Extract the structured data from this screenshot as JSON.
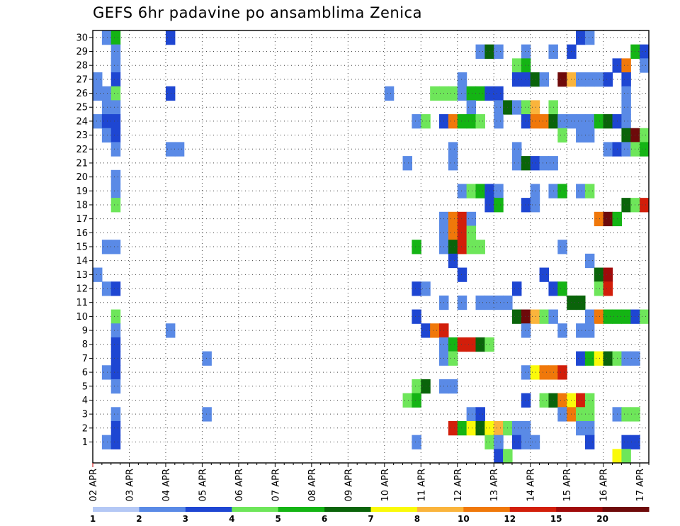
{
  "chart_data": {
    "type": "heatmap",
    "title": "GEFS 6hr padavine po ansamblima Zenica",
    "y_label": "",
    "x_label": "",
    "y_members": [
      1,
      2,
      3,
      4,
      5,
      6,
      7,
      8,
      9,
      10,
      11,
      12,
      13,
      14,
      15,
      16,
      17,
      18,
      19,
      20,
      21,
      22,
      23,
      24,
      25,
      26,
      27,
      28,
      29,
      30
    ],
    "x_tick_labels": [
      "02 APR",
      "03 APR",
      "04 APR",
      "05 APR",
      "06 APR",
      "07 APR",
      "08 APR",
      "09 APR",
      "10 APR",
      "11 APR",
      "12 APR",
      "13 APR",
      "14 APR",
      "15 APR",
      "16 APR",
      "17 APR"
    ],
    "x_step_hours": 6,
    "n_steps": 61,
    "grid": "dotted",
    "legend": {
      "placement": "bottom",
      "labels": [
        "1",
        "2",
        "3",
        "4",
        "5",
        "6",
        "7",
        "8",
        "10",
        "12",
        "15",
        "20"
      ],
      "colors": [
        "#b4c8f5",
        "#5a8ae6",
        "#1e46d2",
        "#6ee65a",
        "#14b414",
        "#0a640a",
        "#fafa0a",
        "#fab43c",
        "#f0780a",
        "#d21e0a",
        "#a00a0a",
        "#6e0a0a"
      ]
    },
    "cells": [
      [
        30,
        1,
        1
      ],
      [
        30,
        2,
        4
      ],
      [
        30,
        8,
        2
      ],
      [
        30,
        53,
        2
      ],
      [
        30,
        54,
        1
      ],
      [
        29,
        2,
        1
      ],
      [
        29,
        42,
        1
      ],
      [
        29,
        43,
        5
      ],
      [
        29,
        44,
        1
      ],
      [
        29,
        47,
        1
      ],
      [
        29,
        50,
        1
      ],
      [
        29,
        52,
        2
      ],
      [
        29,
        59,
        4
      ],
      [
        29,
        60,
        2
      ],
      [
        28,
        2,
        1
      ],
      [
        28,
        46,
        3
      ],
      [
        28,
        47,
        4
      ],
      [
        28,
        57,
        2
      ],
      [
        28,
        58,
        8
      ],
      [
        28,
        60,
        1
      ],
      [
        27,
        0,
        1
      ],
      [
        27,
        2,
        2
      ],
      [
        27,
        40,
        1
      ],
      [
        27,
        46,
        2
      ],
      [
        27,
        47,
        2
      ],
      [
        27,
        48,
        5
      ],
      [
        27,
        49,
        1
      ],
      [
        27,
        51,
        11
      ],
      [
        27,
        52,
        7
      ],
      [
        27,
        53,
        1
      ],
      [
        27,
        54,
        1
      ],
      [
        27,
        55,
        1
      ],
      [
        27,
        56,
        2
      ],
      [
        27,
        58,
        2
      ],
      [
        26,
        0,
        1
      ],
      [
        26,
        1,
        1
      ],
      [
        26,
        2,
        3
      ],
      [
        26,
        8,
        2
      ],
      [
        26,
        32,
        1
      ],
      [
        26,
        37,
        3
      ],
      [
        26,
        38,
        3
      ],
      [
        26,
        39,
        3
      ],
      [
        26,
        40,
        1
      ],
      [
        26,
        41,
        4
      ],
      [
        26,
        42,
        4
      ],
      [
        26,
        43,
        2
      ],
      [
        26,
        44,
        2
      ],
      [
        26,
        58,
        1
      ],
      [
        25,
        1,
        1
      ],
      [
        25,
        2,
        1
      ],
      [
        25,
        41,
        1
      ],
      [
        25,
        44,
        1
      ],
      [
        25,
        45,
        5
      ],
      [
        25,
        46,
        1
      ],
      [
        25,
        47,
        3
      ],
      [
        25,
        48,
        7
      ],
      [
        25,
        50,
        3
      ],
      [
        25,
        58,
        1
      ],
      [
        24,
        0,
        1
      ],
      [
        24,
        1,
        2
      ],
      [
        24,
        2,
        2
      ],
      [
        24,
        35,
        1
      ],
      [
        24,
        36,
        3
      ],
      [
        24,
        38,
        2
      ],
      [
        24,
        39,
        8
      ],
      [
        24,
        40,
        4
      ],
      [
        24,
        41,
        4
      ],
      [
        24,
        42,
        3
      ],
      [
        24,
        44,
        1
      ],
      [
        24,
        47,
        2
      ],
      [
        24,
        48,
        8
      ],
      [
        24,
        49,
        8
      ],
      [
        24,
        50,
        5
      ],
      [
        24,
        51,
        1
      ],
      [
        24,
        52,
        1
      ],
      [
        24,
        53,
        1
      ],
      [
        24,
        54,
        1
      ],
      [
        24,
        55,
        4
      ],
      [
        24,
        56,
        5
      ],
      [
        24,
        57,
        2
      ],
      [
        24,
        58,
        1
      ],
      [
        23,
        1,
        1
      ],
      [
        23,
        2,
        2
      ],
      [
        23,
        51,
        3
      ],
      [
        23,
        53,
        1
      ],
      [
        23,
        54,
        1
      ],
      [
        23,
        58,
        5
      ],
      [
        23,
        59,
        11
      ],
      [
        23,
        60,
        3
      ],
      [
        22,
        2,
        1
      ],
      [
        22,
        8,
        1
      ],
      [
        22,
        9,
        1
      ],
      [
        22,
        39,
        1
      ],
      [
        22,
        46,
        1
      ],
      [
        22,
        56,
        1
      ],
      [
        22,
        57,
        2
      ],
      [
        22,
        58,
        1
      ],
      [
        22,
        59,
        3
      ],
      [
        22,
        60,
        4
      ],
      [
        21,
        34,
        1
      ],
      [
        21,
        39,
        1
      ],
      [
        21,
        46,
        1
      ],
      [
        21,
        47,
        5
      ],
      [
        21,
        48,
        2
      ],
      [
        21,
        49,
        1
      ],
      [
        21,
        50,
        1
      ],
      [
        20,
        2,
        1
      ],
      [
        19,
        2,
        1
      ],
      [
        19,
        40,
        1
      ],
      [
        19,
        41,
        3
      ],
      [
        19,
        42,
        4
      ],
      [
        19,
        43,
        2
      ],
      [
        19,
        44,
        1
      ],
      [
        19,
        48,
        1
      ],
      [
        19,
        50,
        1
      ],
      [
        19,
        51,
        4
      ],
      [
        19,
        53,
        1
      ],
      [
        19,
        54,
        3
      ],
      [
        18,
        2,
        3
      ],
      [
        18,
        43,
        2
      ],
      [
        18,
        44,
        4
      ],
      [
        18,
        47,
        2
      ],
      [
        18,
        48,
        1
      ],
      [
        18,
        58,
        5
      ],
      [
        18,
        59,
        3
      ],
      [
        18,
        60,
        9
      ],
      [
        17,
        38,
        1
      ],
      [
        17,
        39,
        8
      ],
      [
        17,
        40,
        9
      ],
      [
        17,
        41,
        1
      ],
      [
        17,
        55,
        8
      ],
      [
        17,
        56,
        11
      ],
      [
        17,
        57,
        4
      ],
      [
        16,
        38,
        1
      ],
      [
        16,
        39,
        8
      ],
      [
        16,
        40,
        9
      ],
      [
        16,
        41,
        3
      ],
      [
        15,
        1,
        1
      ],
      [
        15,
        2,
        1
      ],
      [
        15,
        35,
        4
      ],
      [
        15,
        38,
        1
      ],
      [
        15,
        39,
        5
      ],
      [
        15,
        40,
        9
      ],
      [
        15,
        41,
        3
      ],
      [
        15,
        42,
        3
      ],
      [
        15,
        51,
        1
      ],
      [
        14,
        39,
        2
      ],
      [
        14,
        54,
        1
      ],
      [
        13,
        0,
        1
      ],
      [
        13,
        40,
        2
      ],
      [
        13,
        49,
        2
      ],
      [
        13,
        55,
        5
      ],
      [
        13,
        56,
        10
      ],
      [
        12,
        1,
        1
      ],
      [
        12,
        2,
        2
      ],
      [
        12,
        35,
        2
      ],
      [
        12,
        36,
        1
      ],
      [
        12,
        46,
        2
      ],
      [
        12,
        50,
        2
      ],
      [
        12,
        51,
        4
      ],
      [
        12,
        55,
        3
      ],
      [
        12,
        56,
        9
      ],
      [
        11,
        38,
        1
      ],
      [
        11,
        40,
        1
      ],
      [
        11,
        42,
        1
      ],
      [
        11,
        43,
        1
      ],
      [
        11,
        44,
        1
      ],
      [
        11,
        45,
        1
      ],
      [
        11,
        52,
        5
      ],
      [
        11,
        53,
        5
      ],
      [
        10,
        2,
        3
      ],
      [
        10,
        35,
        2
      ],
      [
        10,
        46,
        5
      ],
      [
        10,
        47,
        11
      ],
      [
        10,
        48,
        7
      ],
      [
        10,
        49,
        3
      ],
      [
        10,
        50,
        1
      ],
      [
        10,
        54,
        1
      ],
      [
        10,
        55,
        8
      ],
      [
        10,
        56,
        4
      ],
      [
        10,
        57,
        4
      ],
      [
        10,
        58,
        4
      ],
      [
        10,
        59,
        2
      ],
      [
        10,
        60,
        3
      ],
      [
        9,
        2,
        1
      ],
      [
        9,
        8,
        1
      ],
      [
        9,
        36,
        2
      ],
      [
        9,
        37,
        8
      ],
      [
        9,
        38,
        9
      ],
      [
        9,
        47,
        1
      ],
      [
        9,
        51,
        1
      ],
      [
        9,
        53,
        1
      ],
      [
        9,
        54,
        1
      ],
      [
        8,
        2,
        2
      ],
      [
        8,
        38,
        1
      ],
      [
        8,
        39,
        4
      ],
      [
        8,
        40,
        9
      ],
      [
        8,
        41,
        9
      ],
      [
        8,
        42,
        5
      ],
      [
        8,
        43,
        3
      ],
      [
        7,
        2,
        2
      ],
      [
        7,
        12,
        1
      ],
      [
        7,
        38,
        1
      ],
      [
        7,
        39,
        3
      ],
      [
        7,
        53,
        2
      ],
      [
        7,
        54,
        4
      ],
      [
        7,
        55,
        6
      ],
      [
        7,
        56,
        5
      ],
      [
        7,
        57,
        3
      ],
      [
        7,
        58,
        1
      ],
      [
        7,
        59,
        1
      ],
      [
        6,
        1,
        1
      ],
      [
        6,
        2,
        2
      ],
      [
        6,
        47,
        1
      ],
      [
        6,
        48,
        6
      ],
      [
        6,
        49,
        8
      ],
      [
        6,
        50,
        8
      ],
      [
        6,
        51,
        9
      ],
      [
        5,
        2,
        1
      ],
      [
        5,
        35,
        3
      ],
      [
        5,
        36,
        5
      ],
      [
        5,
        38,
        1
      ],
      [
        5,
        39,
        1
      ],
      [
        4,
        34,
        3
      ],
      [
        4,
        35,
        4
      ],
      [
        4,
        47,
        2
      ],
      [
        4,
        49,
        3
      ],
      [
        4,
        50,
        5
      ],
      [
        4,
        51,
        8
      ],
      [
        4,
        52,
        6
      ],
      [
        4,
        53,
        9
      ],
      [
        4,
        54,
        3
      ],
      [
        3,
        2,
        1
      ],
      [
        3,
        12,
        1
      ],
      [
        3,
        41,
        1
      ],
      [
        3,
        42,
        2
      ],
      [
        3,
        51,
        1
      ],
      [
        3,
        52,
        8
      ],
      [
        3,
        53,
        3
      ],
      [
        3,
        54,
        3
      ],
      [
        3,
        57,
        1
      ],
      [
        3,
        58,
        3
      ],
      [
        3,
        59,
        3
      ],
      [
        2,
        2,
        2
      ],
      [
        2,
        39,
        9
      ],
      [
        2,
        40,
        4
      ],
      [
        2,
        41,
        6
      ],
      [
        2,
        42,
        5
      ],
      [
        2,
        43,
        6
      ],
      [
        2,
        44,
        7
      ],
      [
        2,
        45,
        3
      ],
      [
        2,
        46,
        1
      ],
      [
        2,
        47,
        1
      ],
      [
        2,
        53,
        1
      ],
      [
        2,
        54,
        1
      ],
      [
        1,
        1,
        1
      ],
      [
        1,
        2,
        2
      ],
      [
        1,
        35,
        1
      ],
      [
        1,
        43,
        3
      ],
      [
        1,
        44,
        1
      ],
      [
        1,
        46,
        2
      ],
      [
        1,
        47,
        1
      ],
      [
        1,
        48,
        1
      ],
      [
        1,
        54,
        2
      ],
      [
        1,
        58,
        2
      ],
      [
        1,
        59,
        2
      ],
      [
        0,
        44,
        2
      ],
      [
        0,
        45,
        3
      ],
      [
        0,
        57,
        6
      ],
      [
        0,
        58,
        3
      ]
    ]
  }
}
